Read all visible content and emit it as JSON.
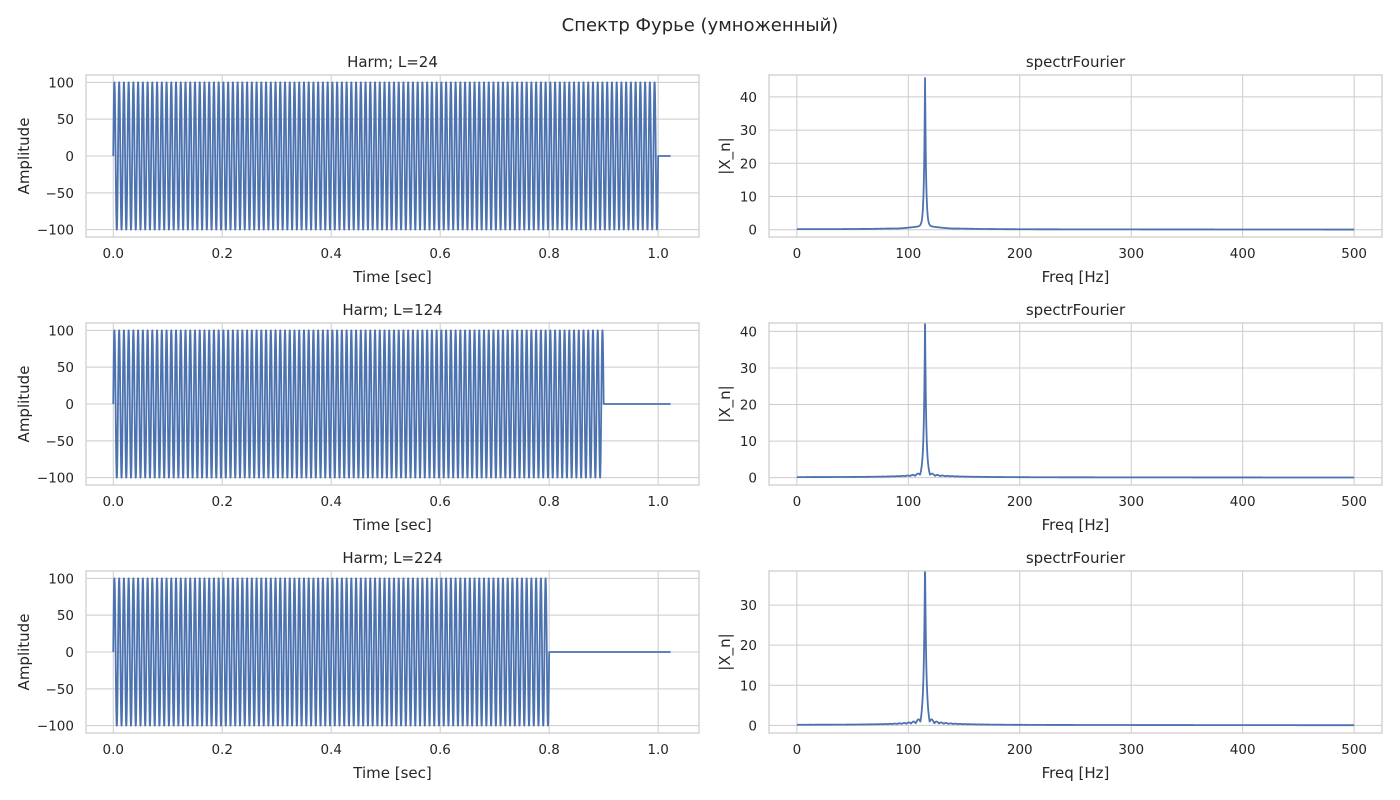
{
  "figure": {
    "title": "Спектр Фурье (умноженный)"
  },
  "palette": {
    "line": "#4c72b0",
    "grid": "#cccccc",
    "text": "#262626",
    "background": "#ffffff"
  },
  "chart_data": [
    {
      "type": "line",
      "title": "Harm; L=24",
      "xlabel": "Time [sec]",
      "ylabel": "Amplitude",
      "xlim": [
        -0.05,
        1.075
      ],
      "ylim": [
        -110,
        110
      ],
      "xticks": [
        "0.0",
        "0.2",
        "0.4",
        "0.6",
        "0.8",
        "1.0"
      ],
      "yticks": [
        "100",
        "50",
        "0",
        "−50",
        "−100"
      ],
      "signal": {
        "amplitude": 100,
        "frequency_hz": 115,
        "t_start": 0,
        "t_end": 1.0,
        "t_total": 1.023
      },
      "grid": true
    },
    {
      "type": "line",
      "title": "spectrFourier",
      "xlabel": "Freq [Hz]",
      "ylabel": "|X_n|",
      "xlim": [
        -25,
        525
      ],
      "ylim": [
        -2.2,
        46.6
      ],
      "xticks": [
        "0",
        "100",
        "200",
        "300",
        "400",
        "500"
      ],
      "yticks": [
        "40",
        "30",
        "20",
        "10",
        "0"
      ],
      "spectrum": {
        "peak_freq": 115,
        "peak_value": 44.5,
        "sidelobe_spacing": 25,
        "sidelobe_level": 0.55
      },
      "grid": true
    },
    {
      "type": "line",
      "title": "Harm; L=124",
      "xlabel": "Time [sec]",
      "ylabel": "Amplitude",
      "xlim": [
        -0.05,
        1.075
      ],
      "ylim": [
        -110,
        110
      ],
      "xticks": [
        "0.0",
        "0.2",
        "0.4",
        "0.6",
        "0.8",
        "1.0"
      ],
      "yticks": [
        "100",
        "50",
        "0",
        "−50",
        "−100"
      ],
      "signal": {
        "amplitude": 100,
        "frequency_hz": 115,
        "t_start": 0,
        "t_end": 0.9,
        "t_total": 1.023
      },
      "grid": true
    },
    {
      "type": "line",
      "title": "spectrFourier",
      "xlabel": "Freq [Hz]",
      "ylabel": "|X_n|",
      "xlim": [
        -25,
        525
      ],
      "ylim": [
        -2.0,
        42.3
      ],
      "xticks": [
        "0",
        "100",
        "200",
        "300",
        "400",
        "500"
      ],
      "yticks": [
        "40",
        "30",
        "20",
        "10",
        "0"
      ],
      "spectrum": {
        "peak_freq": 115,
        "peak_value": 40.5,
        "sidelobe_spacing": 4.5,
        "sidelobe_level": 3.0
      },
      "grid": true
    },
    {
      "type": "line",
      "title": "Harm; L=224",
      "xlabel": "Time [sec]",
      "ylabel": "Amplitude",
      "xlim": [
        -0.05,
        1.075
      ],
      "ylim": [
        -110,
        110
      ],
      "xticks": [
        "0.0",
        "0.2",
        "0.4",
        "0.6",
        "0.8",
        "1.0"
      ],
      "yticks": [
        "100",
        "50",
        "0",
        "−50",
        "−100"
      ],
      "signal": {
        "amplitude": 100,
        "frequency_hz": 115,
        "t_start": 0,
        "t_end": 0.8,
        "t_total": 1.023
      },
      "grid": true
    },
    {
      "type": "line",
      "title": "spectrFourier",
      "xlabel": "Freq [Hz]",
      "ylabel": "|X_n|",
      "xlim": [
        -25,
        525
      ],
      "ylim": [
        -1.9,
        38.5
      ],
      "xticks": [
        "0",
        "100",
        "200",
        "300",
        "400",
        "500"
      ],
      "yticks": [
        "30",
        "20",
        "10",
        "0"
      ],
      "spectrum": {
        "peak_freq": 115,
        "peak_value": 36.8,
        "sidelobe_spacing": 4.2,
        "sidelobe_level": 5.0
      },
      "grid": true
    }
  ]
}
